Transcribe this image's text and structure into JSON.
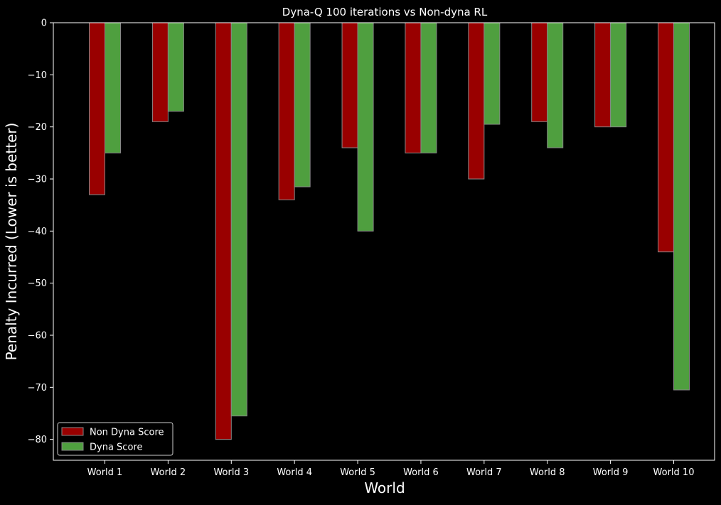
{
  "chart_data": {
    "type": "bar",
    "title": "Dyna-Q 100 iterations vs Non-dyna RL",
    "xlabel": "World",
    "ylabel": "Penalty Incurred (Lower is better)",
    "categories": [
      "World 1",
      "World 2",
      "World 3",
      "World 4",
      "World 5",
      "World 6",
      "World 7",
      "World 8",
      "World 9",
      "World 10"
    ],
    "series": [
      {
        "name": "Non Dyna Score",
        "color": "#990000",
        "values": [
          -33,
          -19,
          -80,
          -34,
          -24,
          -25,
          -30,
          -19,
          -20,
          -44
        ]
      },
      {
        "name": "Dyna Score",
        "color": "#4f9f3f",
        "values": [
          -25,
          -17,
          -75.5,
          -31.5,
          -40,
          -25,
          -19.5,
          -24,
          -20,
          -70.5
        ]
      }
    ],
    "ylim": [
      -84,
      0
    ],
    "yticks": [
      0,
      -10,
      -20,
      -30,
      -40,
      -50,
      -60,
      -70,
      -80
    ],
    "ytick_labels": [
      "0",
      "−10",
      "−20",
      "−30",
      "−40",
      "−50",
      "−60",
      "−70",
      "−80"
    ],
    "grid": false,
    "legend_position": "lower-left",
    "background": "#000000",
    "foreground": "#ffffff",
    "bar_edge_color": "#888888"
  }
}
